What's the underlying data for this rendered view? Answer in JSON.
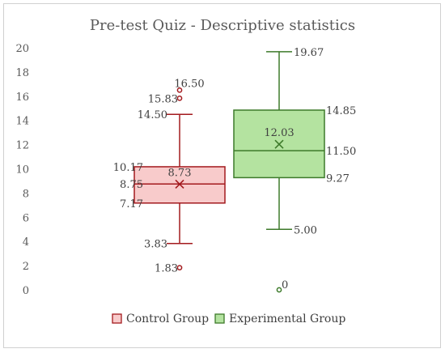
{
  "chart_data": {
    "type": "box",
    "title": "Pre-test Quiz - Descriptive statistics",
    "xlabel": "",
    "ylabel": "",
    "ylim": [
      0,
      20
    ],
    "yticks": [
      0,
      2,
      4,
      6,
      8,
      10,
      12,
      14,
      16,
      18,
      20
    ],
    "grid": false,
    "legend_position": "bottom",
    "series": [
      {
        "name": "Control Group",
        "fill": "#f8cbcb",
        "stroke": "#a31a1e",
        "min": 3.83,
        "q1": 7.17,
        "median": 8.75,
        "q3": 10.17,
        "max": 14.5,
        "mean": 8.73,
        "outliers": [
          16.5,
          15.83,
          1.83
        ],
        "labels": {
          "max": "14.50",
          "q3": "10.17",
          "mean": "8.73",
          "median": "8.75",
          "q1": "7.17",
          "min": "3.83",
          "outliers": [
            "16.50",
            "15.83",
            "1.83"
          ]
        }
      },
      {
        "name": "Experimental Group",
        "fill": "#b4e3a0",
        "stroke": "#3d7a2a",
        "min": 5.0,
        "q1": 9.27,
        "median": 11.5,
        "q3": 14.85,
        "max": 19.67,
        "mean": 12.03,
        "outliers": [
          0
        ],
        "labels": {
          "max": "19.67",
          "q3": "14.85",
          "mean": "12.03",
          "median": "11.50",
          "q1": "9.27",
          "min": "5.00",
          "outliers": [
            "0"
          ]
        }
      }
    ]
  }
}
